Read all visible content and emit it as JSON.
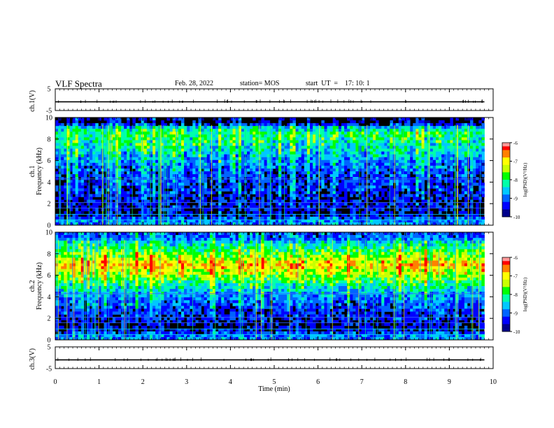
{
  "header": {
    "title": "VLF Spectra",
    "date": "Feb. 28, 2022",
    "station": "station= MOS",
    "start_ut": "start  UT  =    17: 10: 1"
  },
  "colors": {
    "colormap": [
      "#000000",
      "#00008b",
      "#0000ff",
      "#0064ff",
      "#00c8ff",
      "#00ffaa",
      "#00ff00",
      "#c8ff00",
      "#ffff00",
      "#ff8000",
      "#ff0000",
      "#ff9999",
      "#ffffff"
    ],
    "trace": "#000000"
  },
  "chart_data": [
    {
      "type": "line",
      "name": "ch.1 waveform",
      "ylabel": "ch.1(V)",
      "ylim": [
        -5,
        5
      ],
      "yticks": [
        5,
        -5
      ],
      "xlim": [
        0,
        10
      ],
      "approx_level": -1
    },
    {
      "type": "heatmap",
      "name": "ch.1 spectrogram",
      "ylabel": "ch.1\nFrequency (kHz)",
      "ylabel_lines": [
        "ch.1",
        "Frequency  (kHz)"
      ],
      "ylim": [
        0,
        10
      ],
      "yticks": [
        0,
        2,
        4,
        6,
        8,
        10
      ],
      "xlim": [
        0,
        10
      ],
      "data_extent_min": 9.8,
      "colorbar": {
        "label": "log(PSD)(V²/Hz)",
        "range": [
          -10,
          -6
        ],
        "ticks": [
          -6,
          -7,
          -8,
          -9,
          -10
        ]
      },
      "band_profile": [
        {
          "freq_khz": 9.5,
          "log_psd": -10.0
        },
        {
          "freq_khz": 9.0,
          "log_psd": -8.6
        },
        {
          "freq_khz": 8.5,
          "log_psd": -8.2
        },
        {
          "freq_khz": 8.0,
          "log_psd": -8.3
        },
        {
          "freq_khz": 7.0,
          "log_psd": -8.6
        },
        {
          "freq_khz": 6.0,
          "log_psd": -9.0
        },
        {
          "freq_khz": 5.0,
          "log_psd": -9.3
        },
        {
          "freq_khz": 4.0,
          "log_psd": -9.5
        },
        {
          "freq_khz": 3.0,
          "log_psd": -9.6
        },
        {
          "freq_khz": 2.0,
          "log_psd": -9.6
        },
        {
          "freq_khz": 1.0,
          "log_psd": -9.8
        },
        {
          "freq_khz": 0.5,
          "log_psd": -9.0
        }
      ]
    },
    {
      "type": "heatmap",
      "name": "ch.2 spectrogram",
      "ylabel": "ch.2\nFrequency (kHz)",
      "ylabel_lines": [
        "ch.2",
        "Frequency  (kHz)"
      ],
      "ylim": [
        0,
        10
      ],
      "yticks": [
        0,
        2,
        4,
        6,
        8,
        10
      ],
      "xlim": [
        0,
        10
      ],
      "data_extent_min": 9.8,
      "colorbar": {
        "label": "log(PSD)(V²/Hz)",
        "range": [
          -10,
          -6
        ],
        "ticks": [
          -6,
          -7,
          -8,
          -9,
          -10
        ]
      },
      "band_profile": [
        {
          "freq_khz": 9.5,
          "log_psd": -9.2
        },
        {
          "freq_khz": 9.0,
          "log_psd": -8.5
        },
        {
          "freq_khz": 8.0,
          "log_psd": -7.8
        },
        {
          "freq_khz": 7.0,
          "log_psd": -7.0
        },
        {
          "freq_khz": 6.0,
          "log_psd": -7.6
        },
        {
          "freq_khz": 5.0,
          "log_psd": -8.4
        },
        {
          "freq_khz": 4.0,
          "log_psd": -9.0
        },
        {
          "freq_khz": 3.0,
          "log_psd": -9.3
        },
        {
          "freq_khz": 2.0,
          "log_psd": -9.5
        },
        {
          "freq_khz": 1.0,
          "log_psd": -9.8
        },
        {
          "freq_khz": 0.5,
          "log_psd": -9.0
        }
      ]
    },
    {
      "type": "line",
      "name": "ch.3 waveform",
      "ylabel": "ch.3(V)",
      "ylim": [
        -5,
        5
      ],
      "yticks": [
        5,
        -5
      ],
      "xlim": [
        0,
        10
      ],
      "approx_level": -1
    }
  ],
  "x_axis": {
    "label": "Time  (min)",
    "ticks": [
      0,
      1,
      2,
      3,
      4,
      5,
      6,
      7,
      8,
      9,
      10
    ]
  }
}
